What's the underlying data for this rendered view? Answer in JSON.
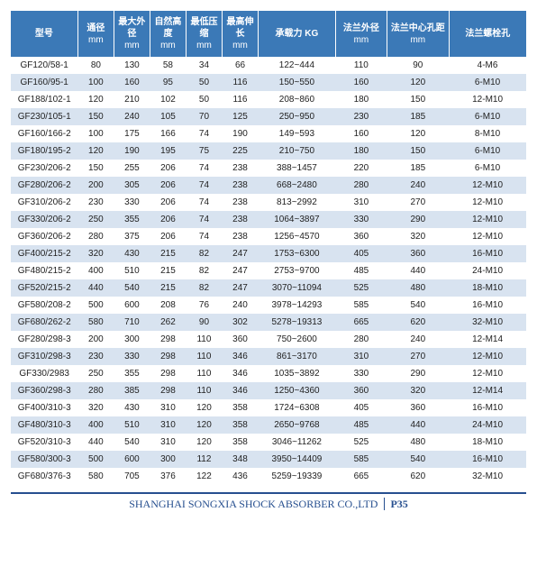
{
  "columns": [
    {
      "label": "型号",
      "unit": ""
    },
    {
      "label": "通径",
      "unit": "mm"
    },
    {
      "label": "最大外径",
      "unit": "mm"
    },
    {
      "label": "自然高度",
      "unit": "mm"
    },
    {
      "label": "最低压缩",
      "unit": "mm"
    },
    {
      "label": "最高伸长",
      "unit": "mm"
    },
    {
      "label": "承载力 KG",
      "unit": ""
    },
    {
      "label": "法兰外径",
      "unit": "mm"
    },
    {
      "label": "法兰中心孔距",
      "unit": "mm"
    },
    {
      "label": "法兰螺栓孔",
      "unit": ""
    }
  ],
  "col_widths": [
    "13%",
    "7%",
    "7%",
    "7%",
    "7%",
    "7%",
    "15%",
    "10%",
    "12%",
    "15%"
  ],
  "rows": [
    [
      "GF120/58-1",
      "80",
      "130",
      "58",
      "34",
      "66",
      "122~444",
      "110",
      "90",
      "4-M6"
    ],
    [
      "GF160/95-1",
      "100",
      "160",
      "95",
      "50",
      "116",
      "150~550",
      "160",
      "120",
      "6-M10"
    ],
    [
      "GF188/102-1",
      "120",
      "210",
      "102",
      "50",
      "116",
      "208~860",
      "180",
      "150",
      "12-M10"
    ],
    [
      "GF230/105-1",
      "150",
      "240",
      "105",
      "70",
      "125",
      "250~950",
      "230",
      "185",
      "6-M10"
    ],
    [
      "GF160/166-2",
      "100",
      "175",
      "166",
      "74",
      "190",
      "149~593",
      "160",
      "120",
      "8-M10"
    ],
    [
      "GF180/195-2",
      "120",
      "190",
      "195",
      "75",
      "225",
      "210~750",
      "180",
      "150",
      "6-M10"
    ],
    [
      "GF230/206-2",
      "150",
      "255",
      "206",
      "74",
      "238",
      "388~1457",
      "220",
      "185",
      "6-M10"
    ],
    [
      "GF280/206-2",
      "200",
      "305",
      "206",
      "74",
      "238",
      "668~2480",
      "280",
      "240",
      "12-M10"
    ],
    [
      "GF310/206-2",
      "230",
      "330",
      "206",
      "74",
      "238",
      "813~2992",
      "310",
      "270",
      "12-M10"
    ],
    [
      "GF330/206-2",
      "250",
      "355",
      "206",
      "74",
      "238",
      "1064~3897",
      "330",
      "290",
      "12-M10"
    ],
    [
      "GF360/206-2",
      "280",
      "375",
      "206",
      "74",
      "238",
      "1256~4570",
      "360",
      "320",
      "12-M10"
    ],
    [
      "GF400/215-2",
      "320",
      "430",
      "215",
      "82",
      "247",
      "1753~6300",
      "405",
      "360",
      "16-M10"
    ],
    [
      "GF480/215-2",
      "400",
      "510",
      "215",
      "82",
      "247",
      "2753~9700",
      "485",
      "440",
      "24-M10"
    ],
    [
      "GF520/215-2",
      "440",
      "540",
      "215",
      "82",
      "247",
      "3070~11094",
      "525",
      "480",
      "18-M10"
    ],
    [
      "GF580/208-2",
      "500",
      "600",
      "208",
      "76",
      "240",
      "3978~14293",
      "585",
      "540",
      "16-M10"
    ],
    [
      "GF680/262-2",
      "580",
      "710",
      "262",
      "90",
      "302",
      "5278~19313",
      "665",
      "620",
      "32-M10"
    ],
    [
      "GF280/298-3",
      "200",
      "300",
      "298",
      "110",
      "360",
      "750~2600",
      "280",
      "240",
      "12-M14"
    ],
    [
      "GF310/298-3",
      "230",
      "330",
      "298",
      "110",
      "346",
      "861~3170",
      "310",
      "270",
      "12-M10"
    ],
    [
      "GF330/2983",
      "250",
      "355",
      "298",
      "110",
      "346",
      "1035~3892",
      "330",
      "290",
      "12-M10"
    ],
    [
      "GF360/298-3",
      "280",
      "385",
      "298",
      "110",
      "346",
      "1250~4360",
      "360",
      "320",
      "12-M14"
    ],
    [
      "GF400/310-3",
      "320",
      "430",
      "310",
      "120",
      "358",
      "1724~6308",
      "405",
      "360",
      "16-M10"
    ],
    [
      "GF480/310-3",
      "400",
      "510",
      "310",
      "120",
      "358",
      "2650~9768",
      "485",
      "440",
      "24-M10"
    ],
    [
      "GF520/310-3",
      "440",
      "540",
      "310",
      "120",
      "358",
      "3046~11262",
      "525",
      "480",
      "18-M10"
    ],
    [
      "GF580/300-3",
      "500",
      "600",
      "300",
      "112",
      "348",
      "3950~14409",
      "585",
      "540",
      "16-M10"
    ],
    [
      "GF680/376-3",
      "580",
      "705",
      "376",
      "122",
      "436",
      "5259~19339",
      "665",
      "620",
      "32-M10"
    ]
  ],
  "footer": {
    "company": "SHANGHAI SONGXIA SHOCK ABSORBER CO.,LTD",
    "page": "P35"
  },
  "style": {
    "header_bg": "#3b79b7",
    "header_fg": "#ffffff",
    "row_odd_bg": "#ffffff",
    "row_even_bg": "#d8e3f0",
    "footer_color": "#264f8f",
    "font_size_cell": 10,
    "font_size_footer": 12
  }
}
